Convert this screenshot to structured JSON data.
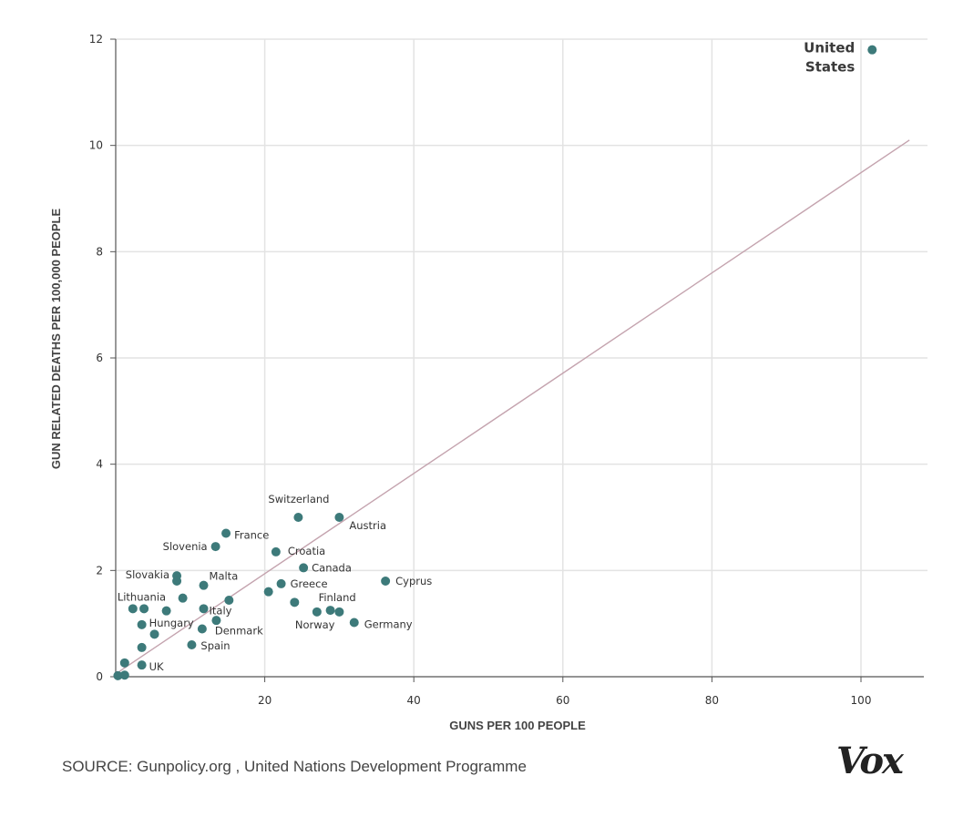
{
  "chart_data": {
    "type": "scatter",
    "xlabel": "GUNS PER 100 PEOPLE",
    "ylabel": "GUN RELATED DEATHS PER 100,000 PEOPLE",
    "xlim": [
      0,
      108
    ],
    "ylim": [
      0,
      12
    ],
    "xticks": [
      20,
      40,
      60,
      80,
      100
    ],
    "yticks": [
      0,
      2,
      4,
      6,
      8,
      10,
      12
    ],
    "grid": true,
    "point_color": "#3d7a7a",
    "trend_color": "#c4a3ae",
    "trendline": {
      "x": [
        0.5,
        106.5
      ],
      "y": [
        0.1,
        10.1
      ]
    },
    "points": [
      {
        "x": 101.5,
        "y": 11.8,
        "label": "United States",
        "label_lines": [
          "United",
          "States"
        ]
      },
      {
        "x": 24.5,
        "y": 3.0,
        "label": "Switzerland"
      },
      {
        "x": 30.0,
        "y": 3.0,
        "label": "Austria"
      },
      {
        "x": 14.8,
        "y": 2.7,
        "label": "France"
      },
      {
        "x": 13.4,
        "y": 2.45,
        "label": "Slovenia"
      },
      {
        "x": 21.5,
        "y": 2.35,
        "label": "Croatia"
      },
      {
        "x": 25.2,
        "y": 2.05,
        "label": "Canada"
      },
      {
        "x": 8.2,
        "y": 1.9,
        "label": "Slovakia"
      },
      {
        "x": 11.8,
        "y": 1.72,
        "label": "Malta"
      },
      {
        "x": 36.2,
        "y": 1.8,
        "label": "Cyprus"
      },
      {
        "x": 22.2,
        "y": 1.75,
        "label": "Greece"
      },
      {
        "x": 20.5,
        "y": 1.6,
        "label": ""
      },
      {
        "x": 24.0,
        "y": 1.4,
        "label": ""
      },
      {
        "x": 28.8,
        "y": 1.25,
        "label": "Finland"
      },
      {
        "x": 27.0,
        "y": 1.22,
        "label": "Norway"
      },
      {
        "x": 30.0,
        "y": 1.22,
        "label": ""
      },
      {
        "x": 32.0,
        "y": 1.02,
        "label": "Germany"
      },
      {
        "x": 2.3,
        "y": 1.28,
        "label": "Lithuania"
      },
      {
        "x": 3.8,
        "y": 1.28,
        "label": ""
      },
      {
        "x": 8.2,
        "y": 1.8,
        "label": ""
      },
      {
        "x": 9.0,
        "y": 1.48,
        "label": ""
      },
      {
        "x": 15.2,
        "y": 1.44,
        "label": ""
      },
      {
        "x": 11.8,
        "y": 1.28,
        "label": "Italy"
      },
      {
        "x": 6.8,
        "y": 1.24,
        "label": ""
      },
      {
        "x": 3.5,
        "y": 0.98,
        "label": "Hungary"
      },
      {
        "x": 13.5,
        "y": 1.06,
        "label": ""
      },
      {
        "x": 11.6,
        "y": 0.9,
        "label": "Denmark"
      },
      {
        "x": 5.2,
        "y": 0.8,
        "label": ""
      },
      {
        "x": 10.2,
        "y": 0.6,
        "label": "Spain"
      },
      {
        "x": 3.5,
        "y": 0.55,
        "label": ""
      },
      {
        "x": 1.2,
        "y": 0.26,
        "label": ""
      },
      {
        "x": 3.5,
        "y": 0.22,
        "label": "UK"
      },
      {
        "x": 0.3,
        "y": 0.02,
        "label": ""
      },
      {
        "x": 1.2,
        "y": 0.03,
        "label": ""
      }
    ]
  },
  "footer": {
    "source": "SOURCE: Gunpolicy.org , United Nations Development Programme",
    "logo": "Vox"
  }
}
